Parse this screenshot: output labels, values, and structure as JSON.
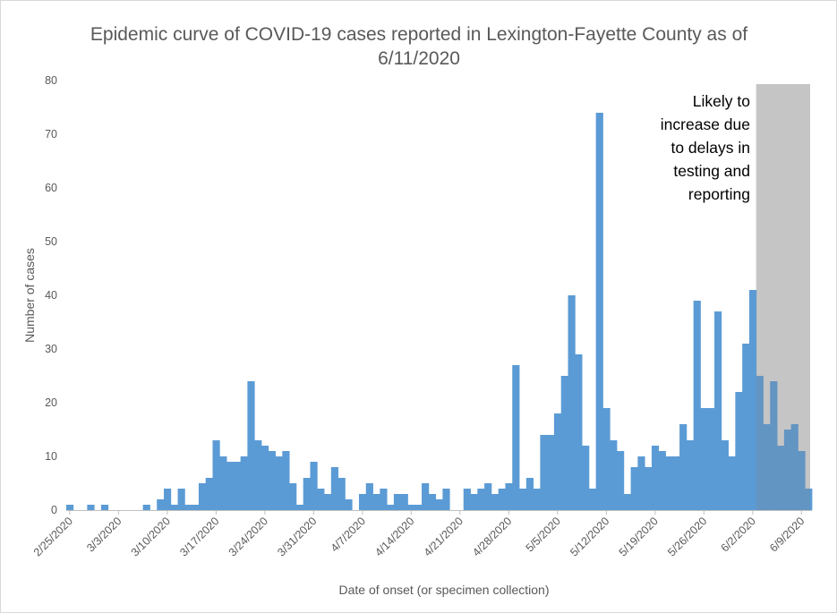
{
  "chart_data": {
    "type": "bar",
    "title_line1": "Epidemic curve of COVID-19 cases reported in Lexington-Fayette County as of",
    "title_line2": "6/11/2020",
    "xlabel": "Date of onset (or specimen collection)",
    "ylabel": "Number of cases",
    "ylim": [
      0,
      80
    ],
    "yticks": [
      0,
      10,
      20,
      30,
      40,
      50,
      60,
      70,
      80
    ],
    "grid": false,
    "legend": "none",
    "bar_color": "#5b9bd5",
    "shade_color": "#d9d9d9",
    "start_date": "2/25/2020",
    "x_tick_labels": [
      "2/25/2020",
      "3/3/2020",
      "3/10/2020",
      "3/17/2020",
      "3/24/2020",
      "3/31/2020",
      "4/7/2020",
      "4/14/2020",
      "4/21/2020",
      "4/28/2020",
      "5/5/2020",
      "5/12/2020",
      "5/19/2020",
      "5/26/2020",
      "6/2/2020",
      "6/9/2020"
    ],
    "values": [
      1,
      0,
      0,
      1,
      0,
      1,
      0,
      0,
      0,
      0,
      0,
      1,
      0,
      2,
      4,
      1,
      4,
      1,
      1,
      5,
      6,
      13,
      10,
      9,
      9,
      10,
      24,
      13,
      12,
      11,
      10,
      11,
      5,
      1,
      6,
      9,
      4,
      3,
      8,
      6,
      2,
      0,
      3,
      5,
      3,
      4,
      1,
      3,
      3,
      1,
      1,
      5,
      3,
      2,
      4,
      0,
      0,
      4,
      3,
      4,
      5,
      3,
      4,
      5,
      27,
      4,
      6,
      4,
      14,
      14,
      18,
      25,
      40,
      29,
      12,
      4,
      74,
      19,
      13,
      11,
      3,
      8,
      10,
      8,
      12,
      11,
      10,
      10,
      16,
      13,
      39,
      19,
      19,
      37,
      13,
      10,
      22,
      31,
      41,
      25,
      16,
      24,
      12,
      15,
      16,
      11,
      4
    ],
    "shaded_region": {
      "from": "6/2/2020",
      "lines": [
        "Likely to",
        "increase due",
        "to delays in",
        "testing and",
        "reporting"
      ]
    }
  }
}
